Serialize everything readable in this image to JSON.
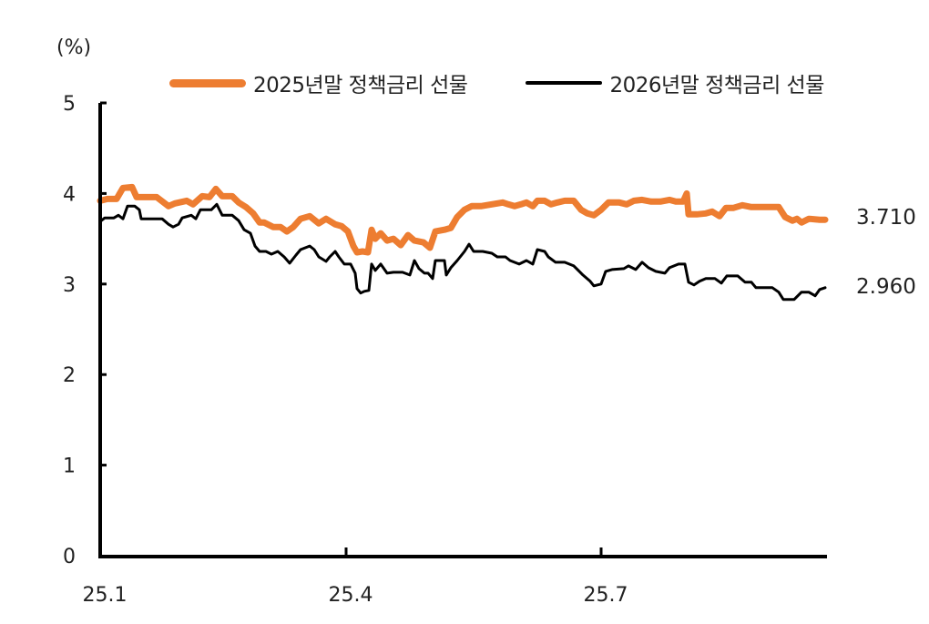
{
  "chart_data": {
    "type": "line",
    "title": "",
    "unit_label": "(%)",
    "xlabel": "",
    "ylabel": "(%)",
    "ylim": [
      0,
      5
    ],
    "yticks": [
      0,
      1,
      2,
      3,
      4,
      5
    ],
    "xticks": [
      "25.1",
      "25.4",
      "25.7"
    ],
    "grid": false,
    "legend_position": "top",
    "series": [
      {
        "name": "2025년말 정책금리 선물",
        "color": "#ED7D31",
        "end_label": "3.710",
        "points": [
          [
            110,
            3.92
          ],
          [
            118,
            3.94
          ],
          [
            128,
            3.94
          ],
          [
            135,
            4.06
          ],
          [
            145,
            4.07
          ],
          [
            150,
            3.96
          ],
          [
            158,
            3.96
          ],
          [
            172,
            3.96
          ],
          [
            185,
            3.86
          ],
          [
            192,
            3.89
          ],
          [
            205,
            3.92
          ],
          [
            212,
            3.88
          ],
          [
            222,
            3.97
          ],
          [
            230,
            3.96
          ],
          [
            237,
            4.05
          ],
          [
            244,
            3.97
          ],
          [
            255,
            3.97
          ],
          [
            262,
            3.9
          ],
          [
            270,
            3.85
          ],
          [
            278,
            3.78
          ],
          [
            285,
            3.68
          ],
          [
            290,
            3.68
          ],
          [
            300,
            3.63
          ],
          [
            308,
            3.63
          ],
          [
            315,
            3.58
          ],
          [
            322,
            3.63
          ],
          [
            330,
            3.72
          ],
          [
            340,
            3.75
          ],
          [
            350,
            3.67
          ],
          [
            358,
            3.72
          ],
          [
            368,
            3.66
          ],
          [
            375,
            3.64
          ],
          [
            382,
            3.58
          ],
          [
            388,
            3.42
          ],
          [
            392,
            3.35
          ],
          [
            398,
            3.36
          ],
          [
            404,
            3.35
          ],
          [
            408,
            3.6
          ],
          [
            412,
            3.5
          ],
          [
            418,
            3.56
          ],
          [
            425,
            3.48
          ],
          [
            432,
            3.5
          ],
          [
            440,
            3.43
          ],
          [
            448,
            3.54
          ],
          [
            455,
            3.48
          ],
          [
            465,
            3.46
          ],
          [
            472,
            3.4
          ],
          [
            478,
            3.58
          ],
          [
            488,
            3.6
          ],
          [
            495,
            3.62
          ],
          [
            502,
            3.74
          ],
          [
            510,
            3.82
          ],
          [
            518,
            3.86
          ],
          [
            528,
            3.86
          ],
          [
            540,
            3.88
          ],
          [
            552,
            3.9
          ],
          [
            558,
            3.88
          ],
          [
            565,
            3.86
          ],
          [
            572,
            3.88
          ],
          [
            578,
            3.9
          ],
          [
            585,
            3.86
          ],
          [
            590,
            3.92
          ],
          [
            598,
            3.92
          ],
          [
            605,
            3.88
          ],
          [
            612,
            3.9
          ],
          [
            620,
            3.92
          ],
          [
            630,
            3.92
          ],
          [
            638,
            3.82
          ],
          [
            645,
            3.78
          ],
          [
            652,
            3.76
          ],
          [
            660,
            3.82
          ],
          [
            668,
            3.9
          ],
          [
            680,
            3.9
          ],
          [
            688,
            3.88
          ],
          [
            696,
            3.92
          ],
          [
            705,
            3.93
          ],
          [
            715,
            3.91
          ],
          [
            725,
            3.91
          ],
          [
            735,
            3.93
          ],
          [
            742,
            3.91
          ],
          [
            750,
            3.91
          ],
          [
            754,
            4.0
          ],
          [
            756,
            3.77
          ],
          [
            765,
            3.77
          ],
          [
            775,
            3.78
          ],
          [
            782,
            3.8
          ],
          [
            790,
            3.75
          ],
          [
            797,
            3.84
          ],
          [
            805,
            3.84
          ],
          [
            815,
            3.87
          ],
          [
            825,
            3.85
          ],
          [
            840,
            3.85
          ],
          [
            855,
            3.85
          ],
          [
            862,
            3.74
          ],
          [
            870,
            3.7
          ],
          [
            875,
            3.72
          ],
          [
            880,
            3.68
          ],
          [
            888,
            3.72
          ],
          [
            900,
            3.71
          ],
          [
            906,
            3.71
          ]
        ]
      },
      {
        "name": "2026년말 정책금리 선물",
        "color": "#000000",
        "end_label": "2.960",
        "points": [
          [
            110,
            3.69
          ],
          [
            115,
            3.73
          ],
          [
            125,
            3.73
          ],
          [
            130,
            3.76
          ],
          [
            135,
            3.72
          ],
          [
            140,
            3.86
          ],
          [
            148,
            3.86
          ],
          [
            153,
            3.82
          ],
          [
            155,
            3.72
          ],
          [
            165,
            3.72
          ],
          [
            178,
            3.72
          ],
          [
            185,
            3.66
          ],
          [
            190,
            3.63
          ],
          [
            196,
            3.66
          ],
          [
            200,
            3.73
          ],
          [
            210,
            3.76
          ],
          [
            215,
            3.72
          ],
          [
            220,
            3.82
          ],
          [
            232,
            3.82
          ],
          [
            238,
            3.88
          ],
          [
            244,
            3.76
          ],
          [
            255,
            3.76
          ],
          [
            262,
            3.7
          ],
          [
            268,
            3.6
          ],
          [
            275,
            3.56
          ],
          [
            280,
            3.42
          ],
          [
            285,
            3.36
          ],
          [
            292,
            3.36
          ],
          [
            298,
            3.33
          ],
          [
            305,
            3.36
          ],
          [
            312,
            3.3
          ],
          [
            318,
            3.23
          ],
          [
            325,
            3.32
          ],
          [
            330,
            3.38
          ],
          [
            340,
            3.42
          ],
          [
            345,
            3.38
          ],
          [
            350,
            3.3
          ],
          [
            358,
            3.25
          ],
          [
            362,
            3.3
          ],
          [
            368,
            3.36
          ],
          [
            372,
            3.3
          ],
          [
            378,
            3.22
          ],
          [
            385,
            3.22
          ],
          [
            390,
            3.12
          ],
          [
            392,
            2.95
          ],
          [
            396,
            2.9
          ],
          [
            400,
            2.92
          ],
          [
            405,
            2.93
          ],
          [
            408,
            3.22
          ],
          [
            412,
            3.15
          ],
          [
            418,
            3.22
          ],
          [
            425,
            3.12
          ],
          [
            432,
            3.13
          ],
          [
            442,
            3.13
          ],
          [
            450,
            3.1
          ],
          [
            455,
            3.26
          ],
          [
            460,
            3.17
          ],
          [
            466,
            3.12
          ],
          [
            470,
            3.12
          ],
          [
            475,
            3.06
          ],
          [
            478,
            3.26
          ],
          [
            488,
            3.26
          ],
          [
            490,
            3.1
          ],
          [
            495,
            3.18
          ],
          [
            502,
            3.26
          ],
          [
            510,
            3.36
          ],
          [
            515,
            3.44
          ],
          [
            520,
            3.36
          ],
          [
            530,
            3.36
          ],
          [
            540,
            3.34
          ],
          [
            546,
            3.3
          ],
          [
            555,
            3.3
          ],
          [
            560,
            3.26
          ],
          [
            570,
            3.22
          ],
          [
            578,
            3.26
          ],
          [
            585,
            3.22
          ],
          [
            590,
            3.38
          ],
          [
            598,
            3.36
          ],
          [
            602,
            3.3
          ],
          [
            610,
            3.24
          ],
          [
            620,
            3.24
          ],
          [
            630,
            3.2
          ],
          [
            640,
            3.1
          ],
          [
            648,
            3.03
          ],
          [
            652,
            2.98
          ],
          [
            660,
            3.0
          ],
          [
            665,
            3.14
          ],
          [
            672,
            3.16
          ],
          [
            685,
            3.17
          ],
          [
            690,
            3.2
          ],
          [
            698,
            3.16
          ],
          [
            705,
            3.24
          ],
          [
            712,
            3.18
          ],
          [
            720,
            3.14
          ],
          [
            730,
            3.12
          ],
          [
            735,
            3.18
          ],
          [
            745,
            3.22
          ],
          [
            752,
            3.22
          ],
          [
            756,
            3.02
          ],
          [
            762,
            2.99
          ],
          [
            768,
            3.03
          ],
          [
            775,
            3.06
          ],
          [
            785,
            3.06
          ],
          [
            792,
            3.01
          ],
          [
            798,
            3.09
          ],
          [
            810,
            3.09
          ],
          [
            818,
            3.02
          ],
          [
            825,
            3.02
          ],
          [
            830,
            2.96
          ],
          [
            840,
            2.96
          ],
          [
            848,
            2.96
          ],
          [
            855,
            2.91
          ],
          [
            860,
            2.83
          ],
          [
            872,
            2.83
          ],
          [
            880,
            2.91
          ],
          [
            888,
            2.91
          ],
          [
            895,
            2.87
          ],
          [
            900,
            2.94
          ],
          [
            906,
            2.96
          ]
        ]
      }
    ]
  },
  "axes": {
    "unit": "(%)",
    "y_ticks": [
      "0",
      "1",
      "2",
      "3",
      "4",
      "5"
    ],
    "x_ticks": [
      "25.1",
      "25.4",
      "25.7"
    ]
  },
  "legend": {
    "series_2025": "2025년말 정책금리 선물",
    "series_2026": "2026년말 정책금리 선물"
  },
  "end_labels": {
    "series_2025": "3.710",
    "series_2026": "2.960"
  }
}
